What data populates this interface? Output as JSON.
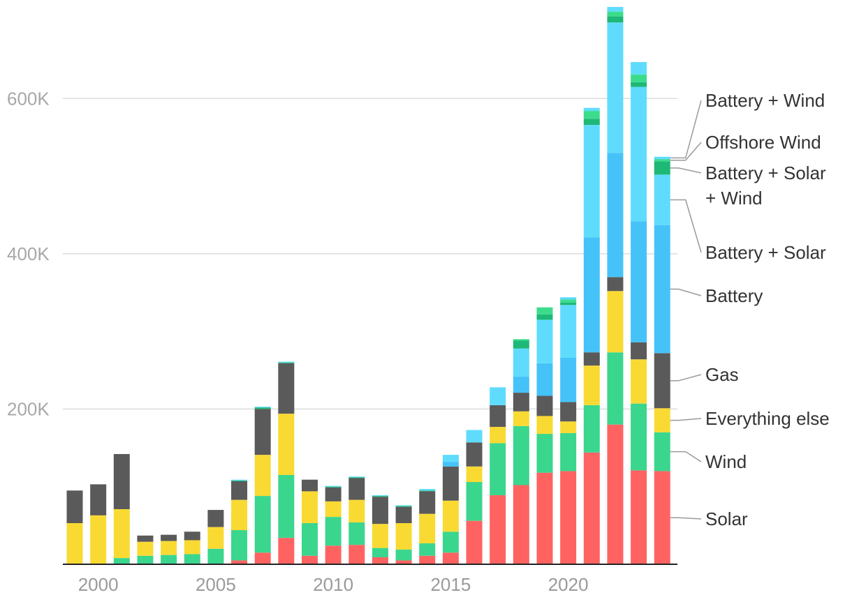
{
  "chart_data": {
    "type": "bar",
    "stacked": true,
    "title": "",
    "xlabel": "",
    "ylabel": "",
    "ylim": [
      0,
      700000
    ],
    "yticks": [
      {
        "value": 200000,
        "label": "200K"
      },
      {
        "value": 400000,
        "label": "400K"
      },
      {
        "value": 600000,
        "label": "600K"
      }
    ],
    "xtick_labels": [
      {
        "year": 2000,
        "label": "2000"
      },
      {
        "year": 2005,
        "label": "2005"
      },
      {
        "year": 2010,
        "label": "2010"
      },
      {
        "year": 2015,
        "label": "2015"
      },
      {
        "year": 2020,
        "label": "2020"
      }
    ],
    "categories": [
      1999,
      2000,
      2001,
      2002,
      2003,
      2004,
      2005,
      2006,
      2007,
      2008,
      2009,
      2010,
      2011,
      2012,
      2013,
      2014,
      2015,
      2016,
      2017,
      2018,
      2019,
      2020,
      2021,
      2022,
      2023,
      2024
    ],
    "series": [
      {
        "name": "Solar",
        "label": "Solar",
        "color": "#ff6361",
        "values": [
          0,
          0,
          0,
          0,
          0,
          0,
          0,
          5000,
          15000,
          34000,
          11000,
          24000,
          25000,
          9000,
          5000,
          11000,
          15000,
          56000,
          89000,
          102000,
          118000,
          120000,
          144000,
          180000,
          121000,
          120000
        ]
      },
      {
        "name": "Wind",
        "label": "Wind",
        "color": "#3ad68e",
        "values": [
          0,
          0,
          8000,
          11000,
          12000,
          13000,
          20000,
          39000,
          73000,
          81000,
          42000,
          37000,
          29000,
          12000,
          14000,
          16000,
          27000,
          50000,
          67000,
          76000,
          50000,
          49000,
          61000,
          93000,
          86000,
          50000
        ]
      },
      {
        "name": "Everything else",
        "label": "Everything else",
        "color": "#f9da33",
        "values": [
          53000,
          63000,
          63000,
          18000,
          18000,
          18000,
          28000,
          39000,
          53000,
          79000,
          41000,
          20000,
          29000,
          31000,
          34000,
          38000,
          40000,
          20000,
          21000,
          19000,
          23000,
          15000,
          51000,
          79000,
          57000,
          31000
        ]
      },
      {
        "name": "Gas",
        "label": "Gas",
        "color": "#5a5a5a",
        "values": [
          42000,
          40000,
          71000,
          8000,
          8000,
          11000,
          22000,
          24000,
          59000,
          65000,
          15000,
          18000,
          28000,
          35000,
          21000,
          29000,
          44000,
          31000,
          28000,
          24000,
          26000,
          25000,
          17000,
          18000,
          22000,
          71000
        ]
      },
      {
        "name": "Battery",
        "label": "Battery",
        "color": "#45c3f9",
        "values": [
          0,
          0,
          0,
          0,
          0,
          0,
          0,
          0,
          0,
          0,
          0,
          0,
          0,
          0,
          0,
          0,
          6000,
          0,
          0,
          21000,
          42000,
          57000,
          148000,
          160000,
          156000,
          165000
        ]
      },
      {
        "name": "Battery + Solar",
        "label": "Battery + Solar",
        "color": "#5fdcfd",
        "values": [
          0,
          0,
          0,
          0,
          0,
          0,
          0,
          0,
          0,
          0,
          0,
          0,
          0,
          0,
          0,
          0,
          9000,
          16000,
          23000,
          36000,
          56000,
          68000,
          145000,
          168000,
          173000,
          65000
        ]
      },
      {
        "name": "Battery + Solar + Wind",
        "label_lines": [
          "Battery + Solar",
          "+ Wind"
        ],
        "color": "#1eb877",
        "values": [
          0,
          0,
          0,
          0,
          0,
          0,
          0,
          1000,
          2000,
          1000,
          0,
          1000,
          1000,
          1000,
          1000,
          1000,
          0,
          0,
          0,
          10000,
          7000,
          3000,
          8000,
          8000,
          6000,
          17000
        ]
      },
      {
        "name": "Offshore Wind",
        "label": "Offshore Wind",
        "color": "#3ddc8c",
        "values": [
          0,
          0,
          0,
          0,
          0,
          0,
          0,
          0,
          0,
          0,
          0,
          0,
          0,
          0,
          0,
          0,
          0,
          0,
          0,
          2000,
          9000,
          4000,
          10000,
          6000,
          10000,
          3000
        ]
      },
      {
        "name": "Battery + Wind",
        "label": "Battery + Wind",
        "color": "#5fdcfd",
        "values": [
          0,
          0,
          0,
          0,
          0,
          0,
          0,
          1000,
          1000,
          1000,
          0,
          1000,
          1000,
          1000,
          1000,
          2000,
          0,
          0,
          0,
          0,
          0,
          3000,
          4000,
          6000,
          16000,
          3000
        ]
      }
    ]
  }
}
